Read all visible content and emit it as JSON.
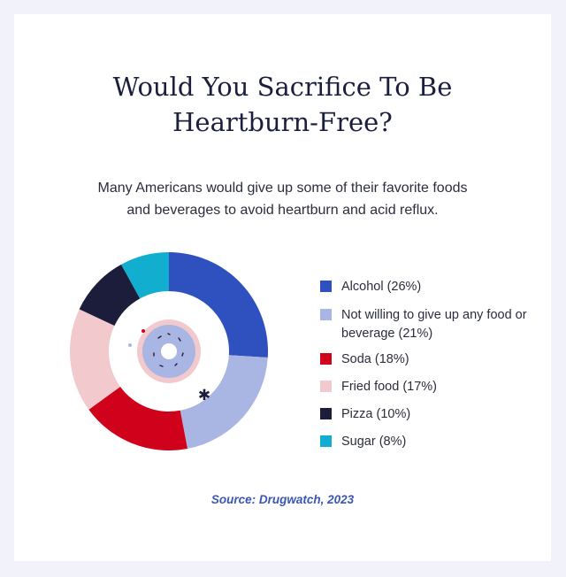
{
  "title_lines": [
    "Would You Sacrifice To Be",
    "Heartburn-Free?"
  ],
  "subtitle_lines": [
    "Many Americans would give up some of their favorite foods",
    "and beverages to avoid heartburn and acid reflux."
  ],
  "source": "Source: Drugwatch, 2023",
  "legend": {
    "items": [
      {
        "label": "Alcohol (26%)",
        "color": "#2f50bf"
      },
      {
        "label": "Not willing to give up any food or beverage (21%)",
        "color": "#a9b5e2"
      },
      {
        "label": "Soda (18%)",
        "color": "#d0021b"
      },
      {
        "label": "Fried food (17%)",
        "color": "#f2c9cd"
      },
      {
        "label": "Pizza (10%)",
        "color": "#1b1d3b"
      },
      {
        "label": "Sugar (8%)",
        "color": "#11aecf"
      }
    ]
  },
  "chart_data": {
    "type": "pie",
    "style": "donut",
    "start_angle_deg": 0,
    "direction": "clockwise",
    "categories": [
      "Alcohol",
      "Not willing to give up any food or beverage",
      "Soda",
      "Fried food",
      "Pizza",
      "Sugar"
    ],
    "values": [
      26,
      21,
      18,
      17,
      10,
      8
    ],
    "unit": "%",
    "colors": [
      "#2f50bf",
      "#a9b5e2",
      "#d0021b",
      "#f2c9cd",
      "#1b1d3b",
      "#11aecf"
    ],
    "legend_position": "right"
  }
}
